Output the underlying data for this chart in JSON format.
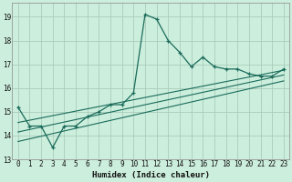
{
  "xlabel": "Humidex (Indice chaleur)",
  "bg_color": "#cceedd",
  "grid_color": "#aaccbb",
  "line_color": "#1a6b5a",
  "xlim": [
    -0.5,
    23.5
  ],
  "ylim": [
    13.0,
    19.6
  ],
  "yticks": [
    13,
    14,
    15,
    16,
    17,
    18,
    19
  ],
  "xticks": [
    0,
    1,
    2,
    3,
    4,
    5,
    6,
    7,
    8,
    9,
    10,
    11,
    12,
    13,
    14,
    15,
    16,
    17,
    18,
    19,
    20,
    21,
    22,
    23
  ],
  "main_series": [
    15.2,
    14.4,
    14.4,
    13.5,
    14.4,
    14.4,
    14.8,
    15.0,
    15.3,
    15.3,
    15.8,
    19.1,
    18.9,
    18.0,
    17.5,
    16.9,
    17.3,
    16.9,
    16.8,
    16.8,
    16.6,
    16.5,
    16.5,
    16.8
  ],
  "reg_lines": [
    {
      "x0": 0,
      "y0": 14.55,
      "x1": 23,
      "y1": 16.75
    },
    {
      "x0": 0,
      "y0": 14.15,
      "x1": 23,
      "y1": 16.55
    },
    {
      "x0": 0,
      "y0": 13.75,
      "x1": 23,
      "y1": 16.3
    }
  ],
  "xlabel_fontsize": 6.5,
  "tick_fontsize": 5.5
}
